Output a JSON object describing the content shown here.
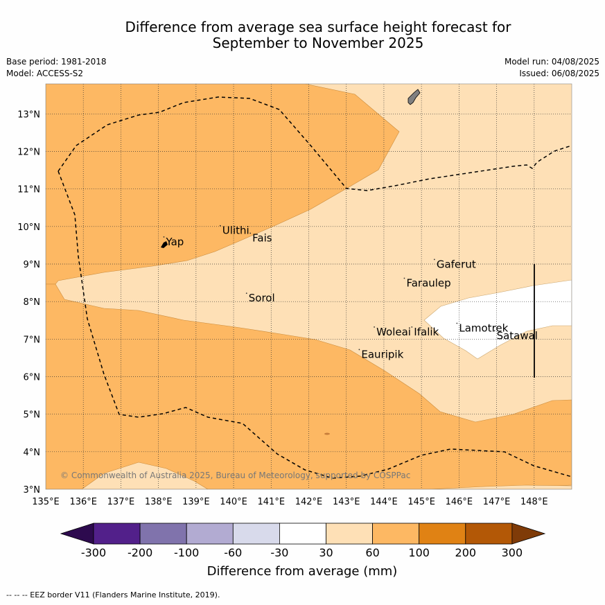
{
  "title_line1": "Difference from average sea surface height forecast for",
  "title_line2": "September to November 2025",
  "meta": {
    "base_period": "Base period: 1981-2018",
    "model": "Model: ACCESS-S2",
    "model_run": "Model run: 04/08/2025",
    "issued": "Issued: 06/08/2025"
  },
  "copyright": "© Commonwealth of Australia 2025, Bureau of Meteorology, supported by COSPPac",
  "footer": "-- -- -- EEZ border V11 (Flanders Marine Institute, 2019).",
  "colors": {
    "neg300": "#2d0a4e",
    "neg200": "#52208a",
    "neg100": "#8073ac",
    "neg60": "#b2abd2",
    "neg30": "#d8daeb",
    "neutral": "#ffffff",
    "pos30": "#fee0b6",
    "pos60": "#fdb863",
    "pos100": "#e08214",
    "pos200": "#b35806",
    "pos300": "#7f3b08",
    "land": "#808080"
  },
  "map": {
    "lon_range": [
      135,
      149
    ],
    "lat_range": [
      3,
      13.8
    ],
    "lon_ticks": [
      "135°E",
      "136°E",
      "137°E",
      "138°E",
      "139°E",
      "140°E",
      "141°E",
      "142°E",
      "143°E",
      "144°E",
      "145°E",
      "146°E",
      "147°E",
      "148°E"
    ],
    "lat_ticks": [
      "3°N",
      "4°N",
      "5°N",
      "6°N",
      "7°N",
      "8°N",
      "9°N",
      "10°N",
      "11°N",
      "12°N",
      "13°N"
    ],
    "places": [
      {
        "name": "Yap",
        "lon": 138.2,
        "lat": 9.5
      },
      {
        "name": "Ulithi",
        "lon": 139.7,
        "lat": 9.8
      },
      {
        "name": "Fais",
        "lon": 140.5,
        "lat": 9.6
      },
      {
        "name": "Sorol",
        "lon": 140.4,
        "lat": 8.0
      },
      {
        "name": "Gaferut",
        "lon": 145.4,
        "lat": 8.9
      },
      {
        "name": "Faraulep",
        "lon": 144.6,
        "lat": 8.4
      },
      {
        "name": "Woleai",
        "lon": 143.8,
        "lat": 7.1
      },
      {
        "name": "Ifalik",
        "lon": 144.8,
        "lat": 7.1
      },
      {
        "name": "Lamotrek",
        "lon": 146.0,
        "lat": 7.2
      },
      {
        "name": "Satawal",
        "lon": 147.0,
        "lat": 7.0
      },
      {
        "name": "Eauripik",
        "lon": 143.4,
        "lat": 6.5
      }
    ]
  },
  "colorbar": {
    "tick_labels": [
      "-300",
      "-200",
      "-100",
      "-60",
      "-30",
      "30",
      "60",
      "100",
      "200",
      "300"
    ],
    "label": "Difference from average (mm)"
  }
}
